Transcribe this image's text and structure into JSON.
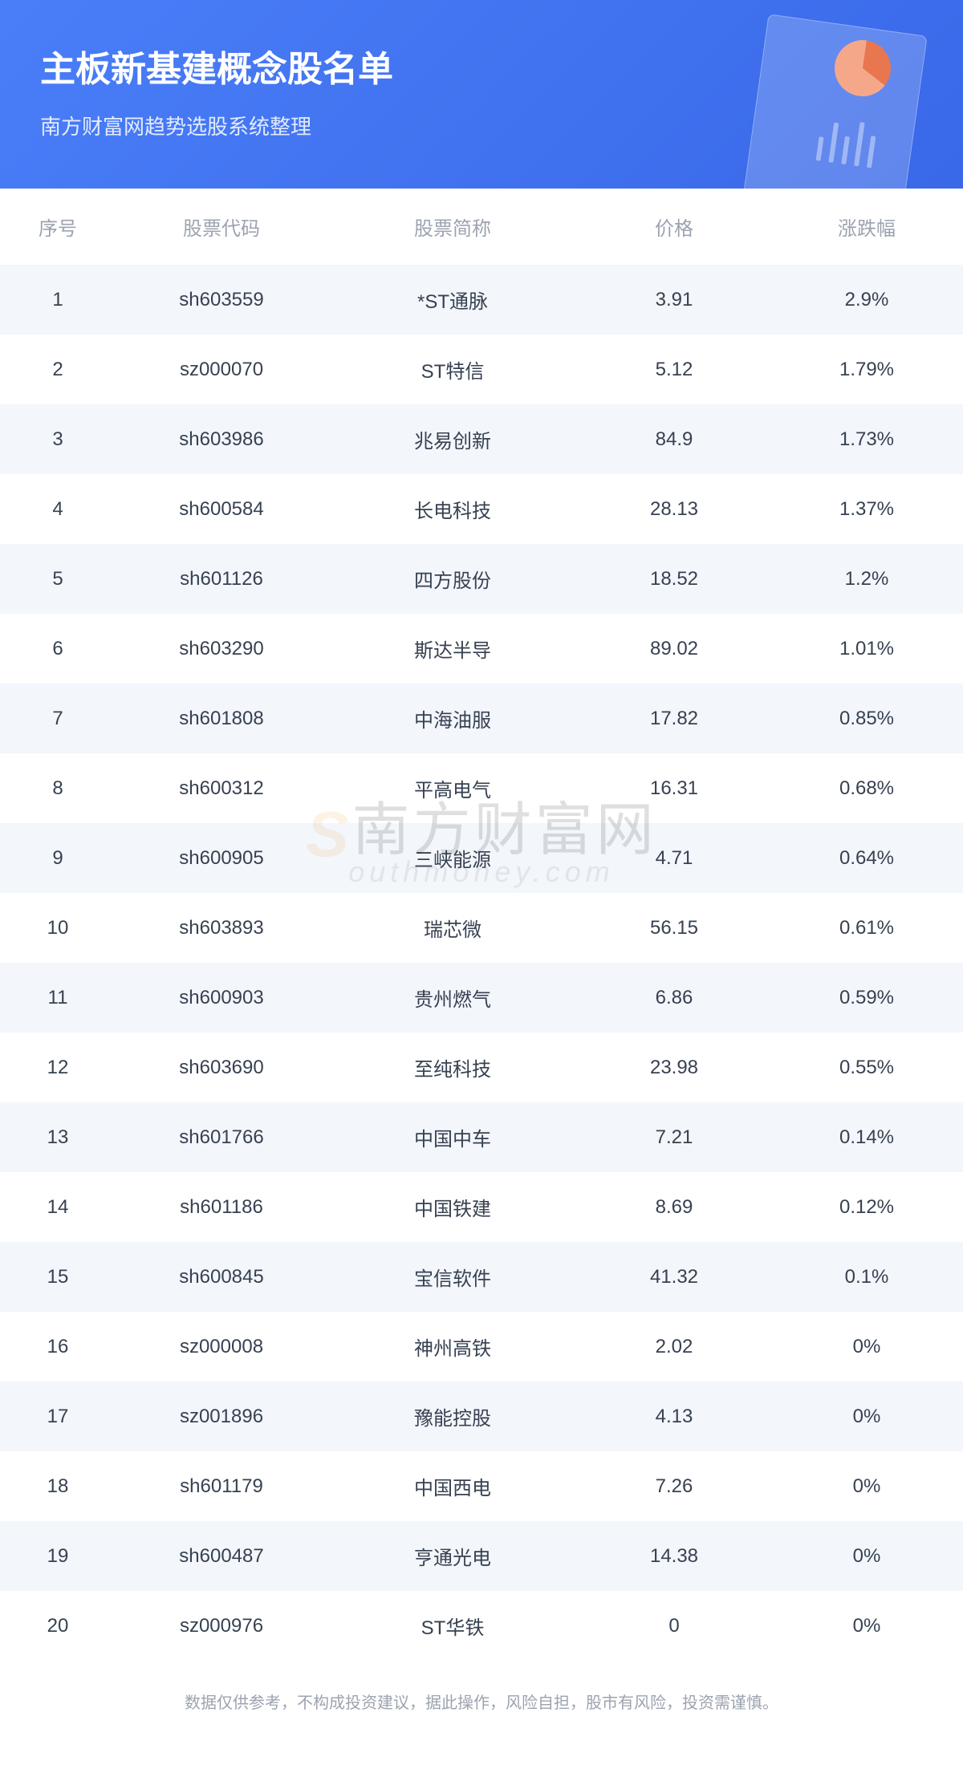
{
  "header": {
    "title": "主板新基建概念股名单",
    "subtitle": "南方财富网趋势选股系统整理"
  },
  "table": {
    "columns": [
      "序号",
      "股票代码",
      "股票简称",
      "价格",
      "涨跌幅"
    ],
    "rows": [
      [
        "1",
        "sh603559",
        "*ST通脉",
        "3.91",
        "2.9%"
      ],
      [
        "2",
        "sz000070",
        "ST特信",
        "5.12",
        "1.79%"
      ],
      [
        "3",
        "sh603986",
        "兆易创新",
        "84.9",
        "1.73%"
      ],
      [
        "4",
        "sh600584",
        "长电科技",
        "28.13",
        "1.37%"
      ],
      [
        "5",
        "sh601126",
        "四方股份",
        "18.52",
        "1.2%"
      ],
      [
        "6",
        "sh603290",
        "斯达半导",
        "89.02",
        "1.01%"
      ],
      [
        "7",
        "sh601808",
        "中海油服",
        "17.82",
        "0.85%"
      ],
      [
        "8",
        "sh600312",
        "平高电气",
        "16.31",
        "0.68%"
      ],
      [
        "9",
        "sh600905",
        "三峡能源",
        "4.71",
        "0.64%"
      ],
      [
        "10",
        "sh603893",
        "瑞芯微",
        "56.15",
        "0.61%"
      ],
      [
        "11",
        "sh600903",
        "贵州燃气",
        "6.86",
        "0.59%"
      ],
      [
        "12",
        "sh603690",
        "至纯科技",
        "23.98",
        "0.55%"
      ],
      [
        "13",
        "sh601766",
        "中国中车",
        "7.21",
        "0.14%"
      ],
      [
        "14",
        "sh601186",
        "中国铁建",
        "8.69",
        "0.12%"
      ],
      [
        "15",
        "sh600845",
        "宝信软件",
        "41.32",
        "0.1%"
      ],
      [
        "16",
        "sz000008",
        "神州高铁",
        "2.02",
        "0%"
      ],
      [
        "17",
        "sz001896",
        "豫能控股",
        "4.13",
        "0%"
      ],
      [
        "18",
        "sh601179",
        "中国西电",
        "7.26",
        "0%"
      ],
      [
        "19",
        "sh600487",
        "亨通光电",
        "14.38",
        "0%"
      ],
      [
        "20",
        "sz000976",
        "ST华铁",
        "0",
        "0%"
      ]
    ]
  },
  "watermark": {
    "cn_prefix": "S",
    "cn_text": "南方财富网",
    "en_text": "outhmoney.com"
  },
  "disclaimer": "数据仅供参考，不构成投资建议，据此操作，风险自担，股市有风险，投资需谨慎。",
  "styling": {
    "header_gradient_start": "#4a7ef8",
    "header_gradient_end": "#3968e8",
    "header_title_color": "#ffffff",
    "header_title_fontsize": 44,
    "header_subtitle_fontsize": 26,
    "table_header_color": "#9ca3af",
    "table_cell_color": "#374151",
    "table_fontsize": 24,
    "row_odd_bg": "#f3f6fb",
    "row_even_bg": "#ffffff",
    "disclaimer_color": "#9ca3af",
    "disclaimer_fontsize": 20,
    "pie_color_primary": "#e8764e",
    "pie_color_secondary": "#f5a889",
    "column_widths": [
      "12%",
      "22%",
      "26%",
      "20%",
      "20%"
    ]
  }
}
